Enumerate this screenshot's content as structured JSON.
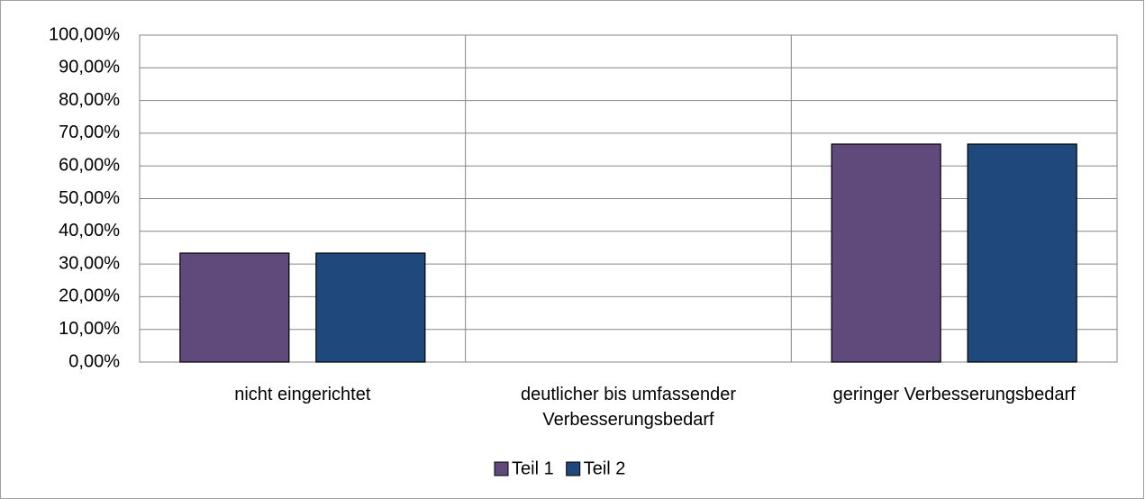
{
  "chart_data": {
    "type": "bar",
    "categories": [
      "nicht eingerichtet",
      "deutlicher bis umfassender Verbesserungsbedarf",
      "geringer Verbesserungsbedarf"
    ],
    "series": [
      {
        "name": "Teil 1",
        "color": "#604a7b",
        "values": [
          33.33,
          0,
          66.67
        ]
      },
      {
        "name": "Teil 2",
        "color": "#1f497d",
        "values": [
          33.33,
          0,
          66.67
        ]
      }
    ],
    "ylim": [
      0,
      100
    ],
    "yticks": [
      {
        "value": 0,
        "label": "0,00%"
      },
      {
        "value": 10,
        "label": "10,00%"
      },
      {
        "value": 20,
        "label": "20,00%"
      },
      {
        "value": 30,
        "label": "30,00%"
      },
      {
        "value": 40,
        "label": "40,00%"
      },
      {
        "value": 50,
        "label": "50,00%"
      },
      {
        "value": 60,
        "label": "60,00%"
      },
      {
        "value": 70,
        "label": "70,00%"
      },
      {
        "value": 80,
        "label": "80,00%"
      },
      {
        "value": 90,
        "label": "90,00%"
      },
      {
        "value": 100,
        "label": "100,00%"
      }
    ],
    "grid": true,
    "legend": "bottom"
  }
}
